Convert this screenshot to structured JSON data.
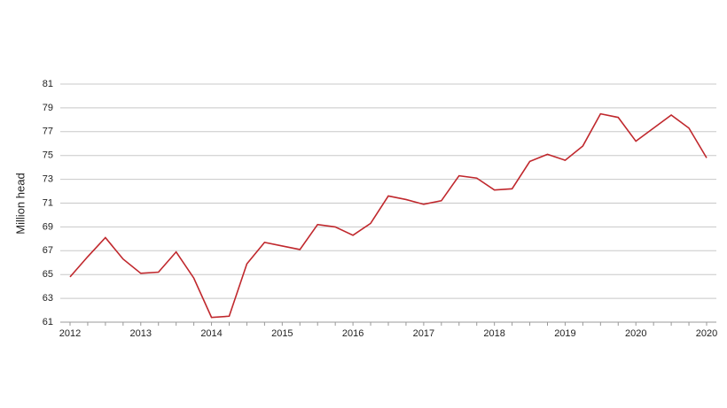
{
  "chart_data": {
    "type": "line",
    "y_label": "Million head",
    "categories": [
      "2012",
      null,
      null,
      null,
      "2013",
      null,
      null,
      null,
      "2014",
      null,
      null,
      null,
      "2015",
      null,
      null,
      null,
      "2016",
      null,
      null,
      null,
      "2017",
      null,
      null,
      null,
      "2018",
      null,
      null,
      null,
      "2019",
      null,
      null,
      null,
      "2020",
      null,
      null,
      null,
      "2020"
    ],
    "series": [
      {
        "name": "Million head",
        "color": "#c0282d",
        "values": [
          64.8,
          66.5,
          68.1,
          66.3,
          65.1,
          65.2,
          66.9,
          64.7,
          61.4,
          61.5,
          65.9,
          67.7,
          67.4,
          67.1,
          69.2,
          69.0,
          68.3,
          69.3,
          71.6,
          71.3,
          70.9,
          71.2,
          73.3,
          73.1,
          72.1,
          72.2,
          74.5,
          75.1,
          74.6,
          75.8,
          78.5,
          78.2,
          76.2,
          77.3,
          78.4,
          77.3,
          74.8
        ]
      }
    ],
    "ylim": [
      61,
      81
    ],
    "yticks": [
      61,
      63,
      65,
      67,
      69,
      71,
      73,
      75,
      77,
      79,
      81
    ],
    "grid": true
  }
}
